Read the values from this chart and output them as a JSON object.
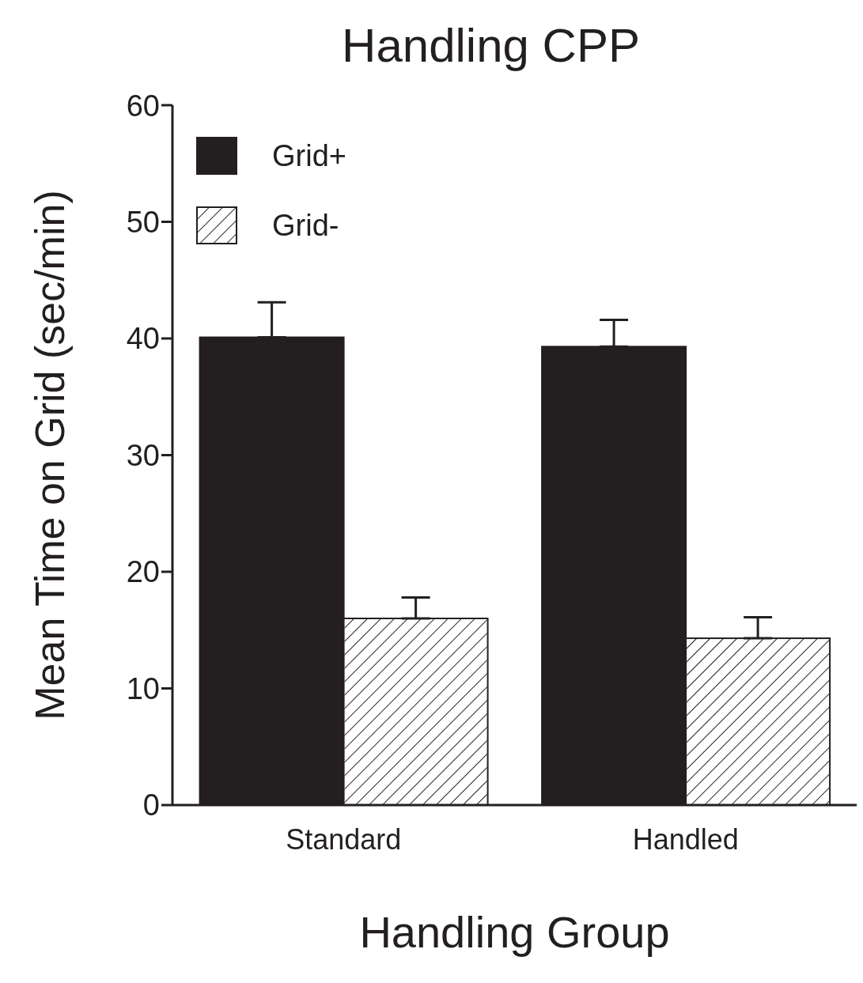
{
  "chart_data": {
    "type": "bar",
    "title": "Handling CPP",
    "xlabel": "Handling Group",
    "ylabel": "Mean Time on Grid (sec/min)",
    "categories": [
      "Standard",
      "Handled"
    ],
    "series": [
      {
        "name": "Grid+",
        "color": "#231f20",
        "values": [
          40.1,
          39.3
        ],
        "errors": [
          [
            40.1,
            43.1
          ],
          [
            39.3,
            41.6
          ]
        ]
      },
      {
        "name": "Grid-",
        "color": "#ffffff",
        "values": [
          16,
          14.3
        ],
        "errors": [
          [
            16,
            17.8
          ],
          [
            14.3,
            16.1
          ]
        ]
      }
    ],
    "ylim": [
      0,
      60
    ],
    "yticks": [
      0,
      10,
      20,
      30,
      40,
      50,
      60
    ],
    "grid": false,
    "legend": "top left"
  }
}
